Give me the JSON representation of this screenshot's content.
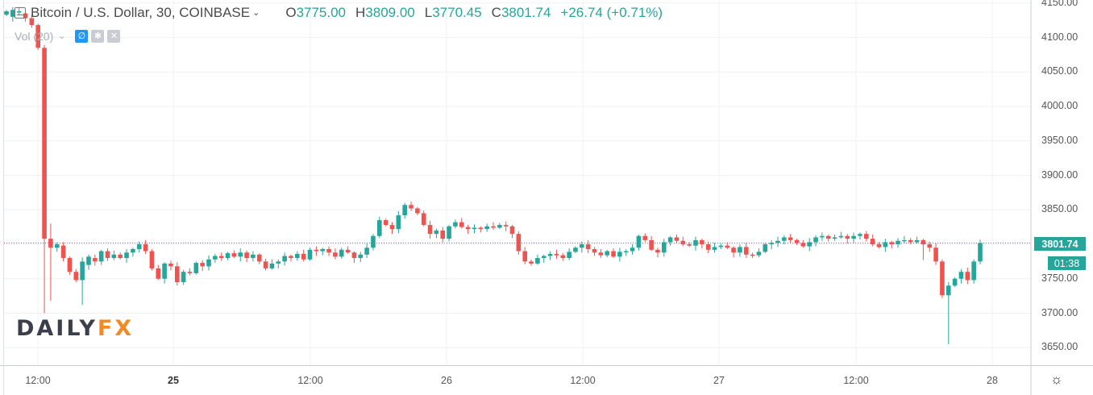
{
  "header": {
    "symbol": "Bitcoin / U.S. Dollar, 30, COINBASE",
    "open_label": "O",
    "open": "3775.00",
    "high_label": "H",
    "high": "3809.00",
    "low_label": "L",
    "low": "3770.45",
    "close_label": "C",
    "close": "3801.74",
    "change": "+26.74 (+0.71%)"
  },
  "volume": {
    "label": "Vol (20)"
  },
  "logo": {
    "part1": "DAILY",
    "part2": "FX"
  },
  "price_axis": {
    "labels": [
      "4150.00",
      "4100.00",
      "4050.00",
      "4000.00",
      "3950.00",
      "3900.00",
      "3850.00",
      "3800.00",
      "3750.00",
      "3700.00",
      "3650.00"
    ],
    "current_price": "3801.74",
    "countdown": "01:38"
  },
  "time_axis": {
    "labels": [
      {
        "text": "12:00",
        "bold": false
      },
      {
        "text": "25",
        "bold": true
      },
      {
        "text": "12:00",
        "bold": false
      },
      {
        "text": "26",
        "bold": false
      },
      {
        "text": "12:00",
        "bold": false
      },
      {
        "text": "27",
        "bold": false
      },
      {
        "text": "12:00",
        "bold": false
      },
      {
        "text": "28",
        "bold": false
      }
    ]
  },
  "icons": {
    "symbol": "chart-symbol-icon",
    "eye": "eye-icon",
    "gear": "gear-icon",
    "close": "close-icon",
    "settings": "sun-settings-icon"
  },
  "colors": {
    "up": "#26a69a",
    "down": "#ef5350",
    "grid": "#eef0f3",
    "price_line": "#26a69a"
  },
  "chart_data": {
    "type": "candlestick",
    "interval_minutes": 30,
    "xlabel": "",
    "ylabel": "",
    "ylim": [
      3630,
      4160
    ],
    "ticks_y": [
      3650,
      3700,
      3750,
      3800,
      3850,
      3900,
      3950,
      4000,
      4050,
      4100,
      4150
    ],
    "current_price": 3801.74,
    "path": [
      [
        4133,
        4138
      ],
      [
        4130,
        4140
      ],
      [
        4138,
        4138
      ],
      [
        4135,
        4128
      ],
      [
        4128,
        4118
      ],
      [
        4118,
        4085
      ],
      [
        4085,
        3808
      ],
      [
        3808,
        3795
      ],
      [
        3795,
        3800
      ],
      [
        3798,
        3780
      ],
      [
        3780,
        3760
      ],
      [
        3760,
        3748
      ],
      [
        3748,
        3775
      ],
      [
        3770,
        3782
      ],
      [
        3780,
        3775
      ],
      [
        3775,
        3790
      ],
      [
        3790,
        3780
      ],
      [
        3780,
        3785
      ],
      [
        3785,
        3780
      ],
      [
        3780,
        3788
      ],
      [
        3788,
        3793
      ],
      [
        3793,
        3800
      ],
      [
        3800,
        3790
      ],
      [
        3790,
        3765
      ],
      [
        3765,
        3750
      ],
      [
        3750,
        3772
      ],
      [
        3772,
        3768
      ],
      [
        3768,
        3745
      ],
      [
        3745,
        3760
      ],
      [
        3760,
        3758
      ],
      [
        3758,
        3773
      ],
      [
        3773,
        3768
      ],
      [
        3768,
        3778
      ],
      [
        3778,
        3783
      ],
      [
        3783,
        3780
      ],
      [
        3780,
        3787
      ],
      [
        3787,
        3782
      ],
      [
        3782,
        3788
      ],
      [
        3788,
        3780
      ],
      [
        3780,
        3785
      ],
      [
        3785,
        3775
      ],
      [
        3775,
        3765
      ],
      [
        3765,
        3772
      ],
      [
        3772,
        3775
      ],
      [
        3775,
        3783
      ],
      [
        3783,
        3780
      ],
      [
        3780,
        3786
      ],
      [
        3786,
        3778
      ],
      [
        3778,
        3792
      ],
      [
        3792,
        3790
      ],
      [
        3790,
        3793
      ],
      [
        3793,
        3788
      ],
      [
        3788,
        3782
      ],
      [
        3782,
        3792
      ],
      [
        3792,
        3788
      ],
      [
        3788,
        3780
      ],
      [
        3780,
        3785
      ],
      [
        3785,
        3795
      ],
      [
        3795,
        3812
      ],
      [
        3812,
        3835
      ],
      [
        3835,
        3828
      ],
      [
        3828,
        3822
      ],
      [
        3822,
        3842
      ],
      [
        3842,
        3857
      ],
      [
        3857,
        3852
      ],
      [
        3852,
        3845
      ],
      [
        3845,
        3828
      ],
      [
        3828,
        3815
      ],
      [
        3815,
        3820
      ],
      [
        3820,
        3808
      ],
      [
        3808,
        3826
      ],
      [
        3826,
        3832
      ],
      [
        3832,
        3825
      ],
      [
        3825,
        3822
      ],
      [
        3822,
        3824
      ],
      [
        3824,
        3822
      ],
      [
        3822,
        3826
      ],
      [
        3826,
        3824
      ],
      [
        3824,
        3828
      ],
      [
        3828,
        3826
      ],
      [
        3826,
        3815
      ],
      [
        3815,
        3790
      ],
      [
        3790,
        3775
      ],
      [
        3775,
        3772
      ],
      [
        3772,
        3780
      ],
      [
        3780,
        3783
      ],
      [
        3783,
        3786
      ],
      [
        3786,
        3784
      ],
      [
        3784,
        3780
      ],
      [
        3780,
        3789
      ],
      [
        3789,
        3795
      ],
      [
        3795,
        3800
      ],
      [
        3800,
        3793
      ],
      [
        3793,
        3788
      ],
      [
        3788,
        3784
      ],
      [
        3784,
        3790
      ],
      [
        3790,
        3782
      ],
      [
        3782,
        3789
      ],
      [
        3789,
        3790
      ],
      [
        3790,
        3795
      ],
      [
        3795,
        3812
      ],
      [
        3812,
        3806
      ],
      [
        3806,
        3792
      ],
      [
        3792,
        3788
      ],
      [
        3788,
        3803
      ],
      [
        3803,
        3810
      ],
      [
        3810,
        3805
      ],
      [
        3805,
        3800
      ],
      [
        3800,
        3798
      ],
      [
        3798,
        3806
      ],
      [
        3806,
        3800
      ],
      [
        3800,
        3792
      ],
      [
        3792,
        3796
      ],
      [
        3796,
        3798
      ],
      [
        3798,
        3795
      ],
      [
        3795,
        3788
      ],
      [
        3788,
        3796
      ],
      [
        3796,
        3785
      ],
      [
        3785,
        3784
      ],
      [
        3784,
        3789
      ],
      [
        3789,
        3800
      ],
      [
        3800,
        3802
      ],
      [
        3802,
        3805
      ],
      [
        3805,
        3810
      ],
      [
        3810,
        3806
      ],
      [
        3806,
        3802
      ],
      [
        3802,
        3797
      ],
      [
        3797,
        3803
      ],
      [
        3803,
        3810
      ],
      [
        3810,
        3812
      ],
      [
        3812,
        3808
      ],
      [
        3808,
        3810
      ],
      [
        3810,
        3812
      ],
      [
        3812,
        3808
      ],
      [
        3808,
        3812
      ],
      [
        3812,
        3815
      ],
      [
        3815,
        3808
      ],
      [
        3808,
        3800
      ],
      [
        3800,
        3796
      ],
      [
        3796,
        3803
      ],
      [
        3803,
        3800
      ],
      [
        3800,
        3805
      ],
      [
        3805,
        3806
      ],
      [
        3806,
        3803
      ],
      [
        3803,
        3806
      ],
      [
        3806,
        3800
      ],
      [
        3800,
        3795
      ],
      [
        3795,
        3775
      ],
      [
        3775,
        3726
      ],
      [
        3726,
        3740
      ],
      [
        3740,
        3750
      ],
      [
        3750,
        3760
      ],
      [
        3760,
        3748
      ],
      [
        3748,
        3775
      ],
      [
        3775,
        3801.74
      ]
    ]
  }
}
